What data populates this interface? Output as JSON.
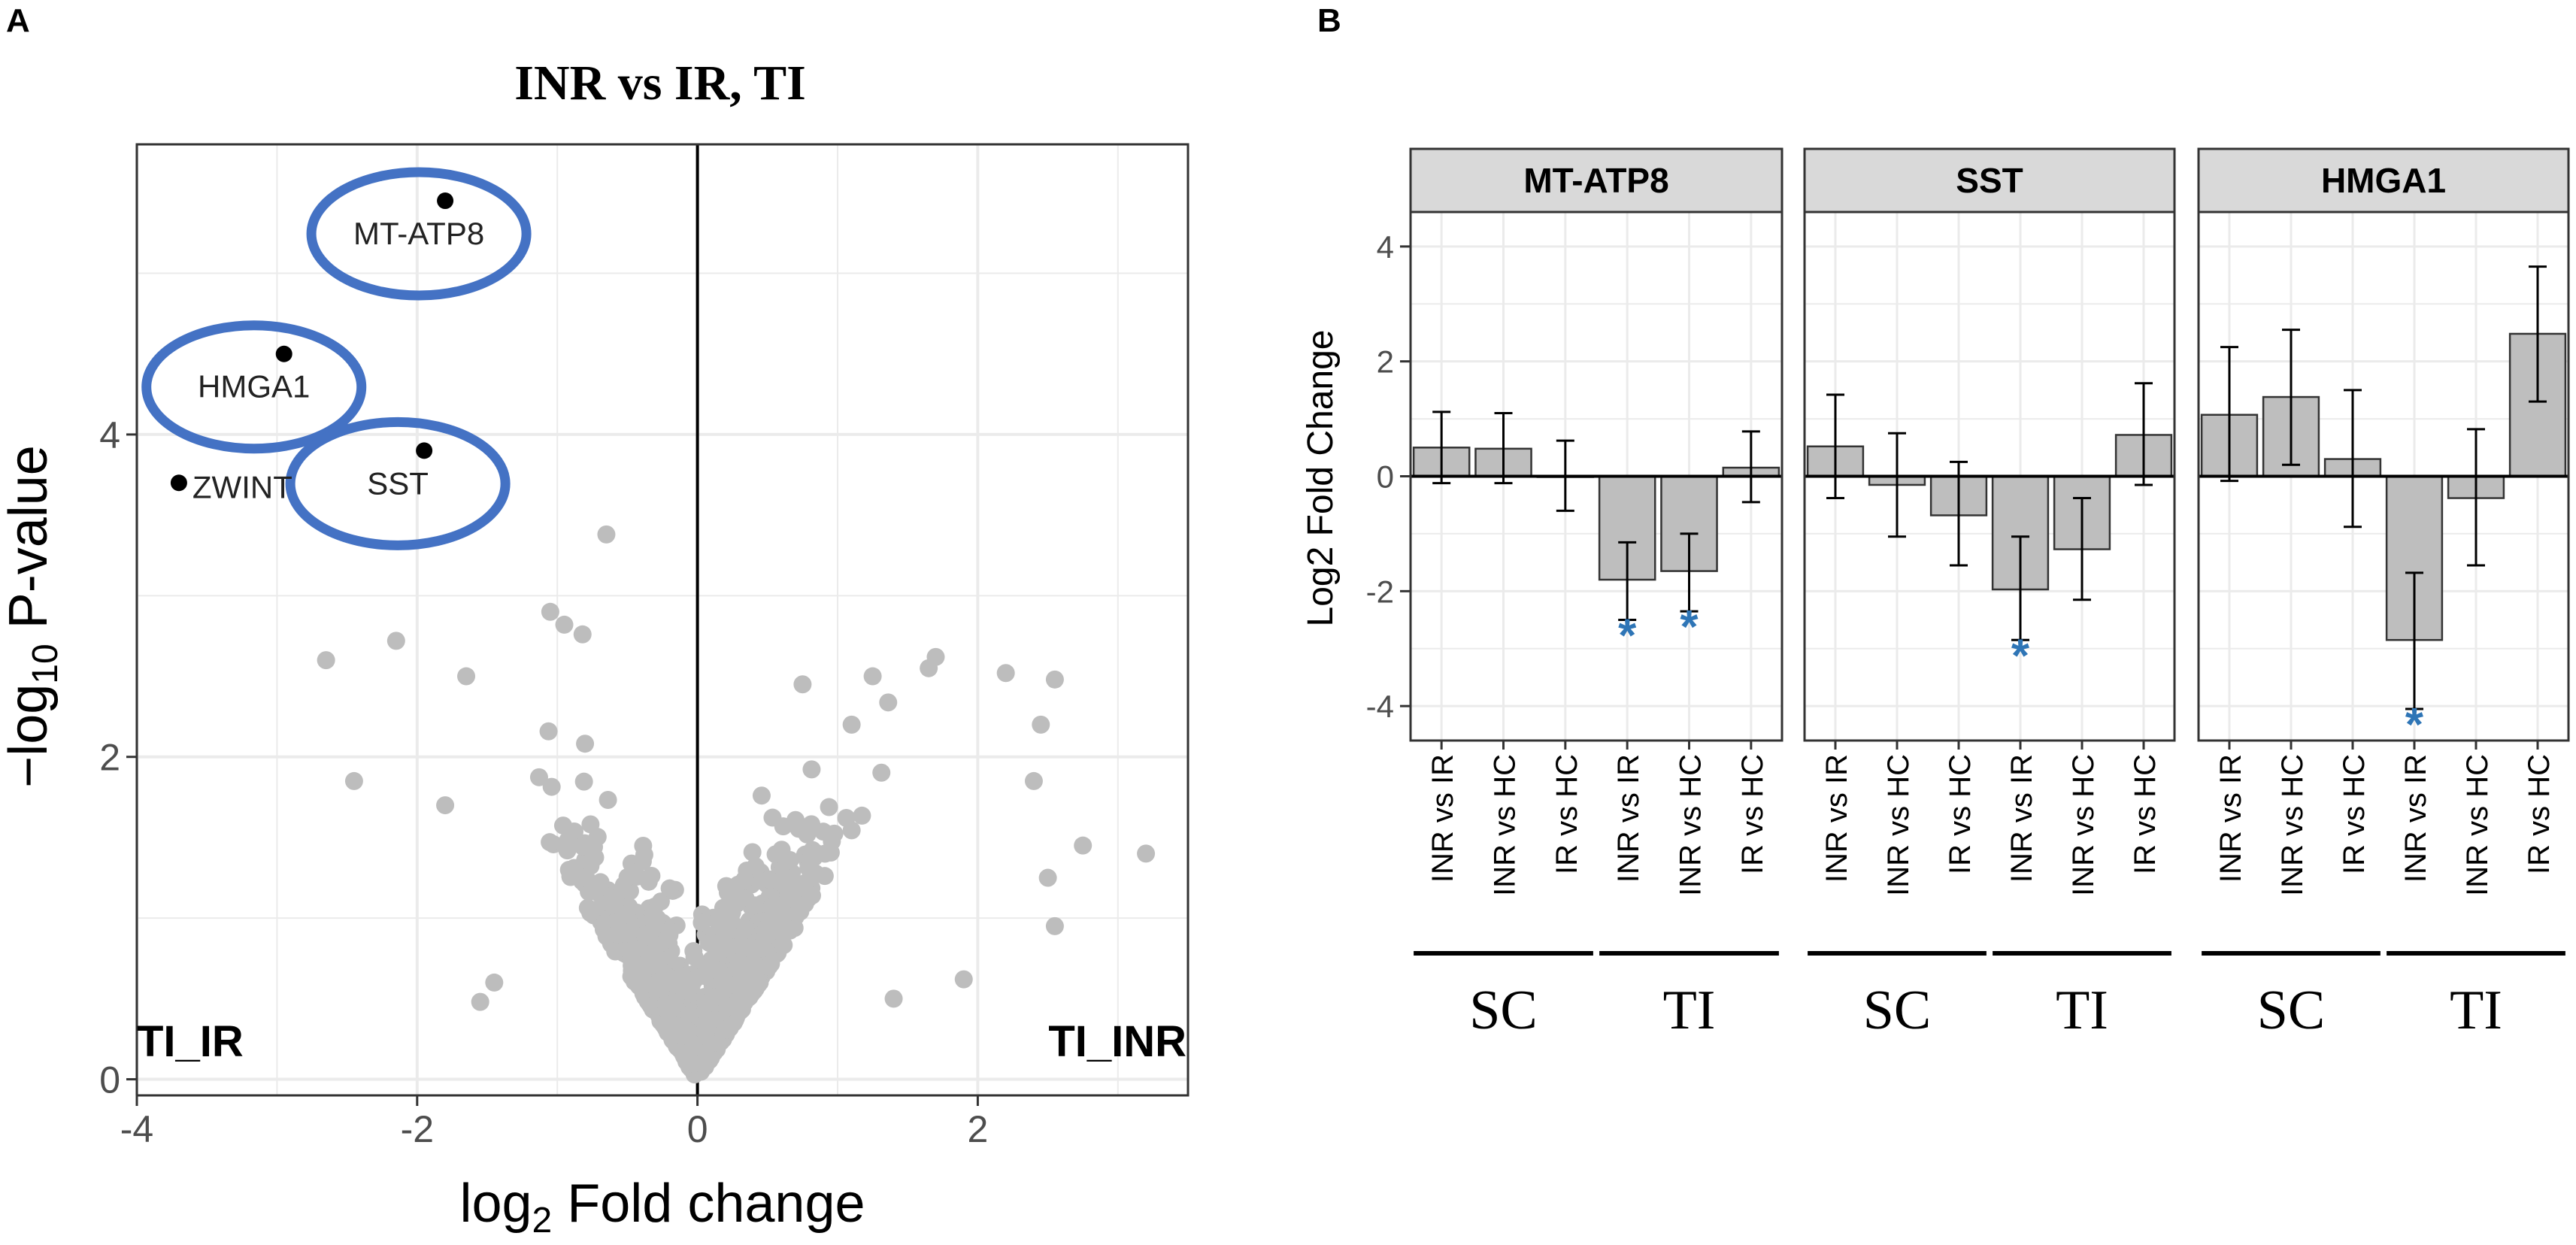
{
  "panel_a": {
    "letter": "A",
    "title": "INR vs IR, TI",
    "ylabel_pre": "−log",
    "ylabel_sub": "10",
    "ylabel_post": " P-value",
    "xlabel_pre": "log",
    "xlabel_sub": "2",
    "xlabel_post": " Fold change",
    "left_group_label": "TI_IR",
    "right_group_label": "TI_INR"
  },
  "panel_b": {
    "letter": "B",
    "ylabel": "Log2 Fold Change",
    "group_labels": [
      "SC",
      "TI"
    ]
  },
  "colors": {
    "point": "#bdbdbd",
    "highlight_point": "#000000",
    "circle": "#4472c4",
    "grid": "#ebebeb",
    "bar": "#bebebe",
    "strip": "#d9d9d9",
    "star": "#2e75b6"
  },
  "chart_data": [
    {
      "type": "scatter",
      "title": "INR vs IR, TI",
      "xlabel": "log2 Fold change",
      "ylabel": "-log10 P-value",
      "xlim": [
        -4.0,
        3.5
      ],
      "ylim": [
        -0.1,
        5.8
      ],
      "xticks": [
        -4,
        -2,
        0,
        2
      ],
      "yticks": [
        0,
        2,
        4
      ],
      "highlighted": [
        {
          "label": "MT-ATP8",
          "x": -1.8,
          "y": 5.45,
          "circled": true
        },
        {
          "label": "HMGA1",
          "x": -2.95,
          "y": 4.5,
          "circled": true
        },
        {
          "label": "SST",
          "x": -1.95,
          "y": 3.9,
          "circled": true
        },
        {
          "label": "ZWINT",
          "x": -3.7,
          "y": 3.7,
          "circled": false
        }
      ],
      "notable_points": [
        {
          "x": -0.65,
          "y": 3.38
        },
        {
          "x": -1.05,
          "y": 2.9
        },
        {
          "x": -0.95,
          "y": 2.82
        },
        {
          "x": -0.82,
          "y": 2.76
        },
        {
          "x": -2.15,
          "y": 2.72
        },
        {
          "x": -2.65,
          "y": 2.6
        },
        {
          "x": -2.45,
          "y": 1.85
        },
        {
          "x": -1.65,
          "y": 2.5
        },
        {
          "x": -1.8,
          "y": 1.7
        },
        {
          "x": 1.7,
          "y": 2.62
        },
        {
          "x": 1.65,
          "y": 2.55
        },
        {
          "x": 2.2,
          "y": 2.52
        },
        {
          "x": 2.55,
          "y": 2.48
        },
        {
          "x": 2.45,
          "y": 2.2
        },
        {
          "x": 2.4,
          "y": 1.85
        },
        {
          "x": 2.75,
          "y": 1.45
        },
        {
          "x": 3.2,
          "y": 1.4
        },
        {
          "x": 2.5,
          "y": 1.25
        },
        {
          "x": 2.55,
          "y": 0.95
        },
        {
          "x": 1.9,
          "y": 0.62
        },
        {
          "x": 1.4,
          "y": 0.5
        },
        {
          "x": 1.25,
          "y": 2.5
        },
        {
          "x": 1.1,
          "y": 2.2
        },
        {
          "x": 0.75,
          "y": 2.45
        },
        {
          "x": -1.55,
          "y": 0.48
        },
        {
          "x": -1.45,
          "y": 0.6
        }
      ]
    },
    {
      "type": "bar",
      "ylabel": "Log2 Fold Change",
      "ylim": [
        -4.6,
        4.6
      ],
      "yticks": [
        -4,
        -2,
        0,
        2,
        4
      ],
      "categories": [
        "INR vs IR",
        "INR vs HC",
        "IR vs HC",
        "INR vs IR",
        "INR vs HC",
        "IR vs HC"
      ],
      "groups": [
        {
          "label": "SC",
          "categories": [
            "INR vs IR",
            "INR vs HC",
            "IR vs HC"
          ]
        },
        {
          "label": "TI",
          "categories": [
            "INR vs IR",
            "INR vs HC",
            "IR vs HC"
          ]
        }
      ],
      "facets": [
        {
          "name": "MT-ATP8",
          "values": [
            0.5,
            0.48,
            0.0,
            -1.8,
            -1.65,
            0.15
          ],
          "err_low": [
            -0.12,
            -0.12,
            -0.6,
            -2.5,
            -2.35,
            -0.45
          ],
          "err_high": [
            1.12,
            1.1,
            0.62,
            -1.15,
            -1.0,
            0.78
          ],
          "significant": [
            false,
            false,
            false,
            true,
            true,
            false
          ]
        },
        {
          "name": "SST",
          "values": [
            0.52,
            -0.15,
            -0.68,
            -1.97,
            -1.27,
            0.72
          ],
          "err_low": [
            -0.38,
            -1.05,
            -1.55,
            -2.85,
            -2.15,
            -0.15
          ],
          "err_high": [
            1.42,
            0.75,
            0.25,
            -1.05,
            -0.38,
            1.62
          ],
          "significant": [
            false,
            false,
            false,
            true,
            false,
            false
          ]
        },
        {
          "name": "HMGA1",
          "values": [
            1.07,
            1.38,
            0.3,
            -2.85,
            -0.38,
            2.48
          ],
          "err_low": [
            -0.08,
            0.2,
            -0.88,
            -4.05,
            -1.55,
            1.3
          ],
          "err_high": [
            2.25,
            2.55,
            1.5,
            -1.68,
            0.82,
            3.65
          ],
          "significant": [
            false,
            false,
            false,
            true,
            false,
            false
          ]
        }
      ]
    }
  ]
}
